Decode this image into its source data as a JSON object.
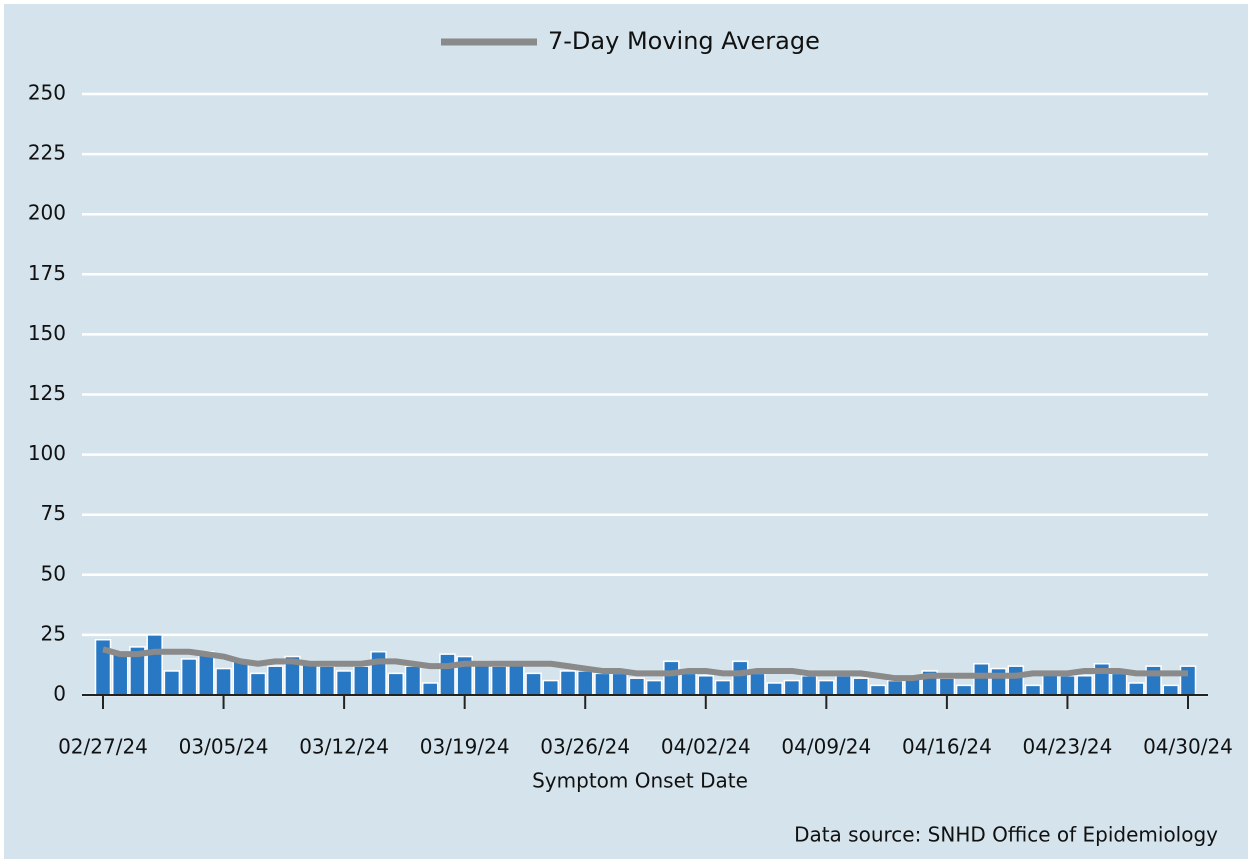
{
  "chart_data": {
    "type": "bar",
    "categories": [
      "02/27/24",
      null,
      null,
      null,
      null,
      null,
      null,
      "03/05/24",
      null,
      null,
      null,
      null,
      null,
      null,
      "03/12/24",
      null,
      null,
      null,
      null,
      null,
      null,
      "03/19/24",
      null,
      null,
      null,
      null,
      null,
      null,
      "03/26/24",
      null,
      null,
      null,
      null,
      null,
      null,
      "04/02/24",
      null,
      null,
      null,
      null,
      null,
      null,
      "04/09/24",
      null,
      null,
      null,
      null,
      null,
      null,
      "04/16/24",
      null,
      null,
      null,
      null,
      null,
      null,
      "04/23/24",
      null,
      null,
      null,
      null,
      null,
      null,
      "04/30/24"
    ],
    "values": [
      23,
      17,
      20,
      25,
      10,
      15,
      18,
      11,
      14,
      9,
      12,
      16,
      14,
      12,
      10,
      12,
      18,
      9,
      12,
      5,
      17,
      16,
      14,
      12,
      13,
      9,
      6,
      10,
      10,
      9,
      9,
      7,
      6,
      14,
      9,
      8,
      6,
      14,
      9,
      5,
      6,
      8,
      6,
      8,
      7,
      4,
      6,
      7,
      10,
      7,
      4,
      13,
      11,
      12,
      4,
      9,
      8,
      8,
      13,
      9,
      5,
      12,
      4,
      12
    ],
    "color": "#2878c4",
    "series": [
      {
        "name": "7-Day Moving Average",
        "color": "#8a8a8a",
        "values": [
          19,
          17,
          17,
          18,
          18,
          18,
          17,
          16,
          14,
          13,
          14,
          14,
          13,
          13,
          13,
          13,
          14,
          14,
          13,
          12,
          12,
          13,
          13,
          13,
          13,
          13,
          13,
          12,
          11,
          10,
          10,
          9,
          9,
          9,
          10,
          10,
          9,
          9,
          10,
          10,
          10,
          9,
          9,
          9,
          9,
          8,
          7,
          7,
          8,
          8,
          8,
          8,
          8,
          8,
          9,
          9,
          9,
          10,
          10,
          10,
          9,
          9,
          9,
          9
        ]
      }
    ],
    "x_label": "Symptom Onset Date",
    "source": "Data source: SNHD Office of Epidemiology",
    "ylim": [
      0,
      250
    ],
    "yticks": [
      0,
      25,
      50,
      75,
      100,
      125,
      150,
      175,
      200,
      225,
      250
    ],
    "grid": true,
    "legend": "top"
  }
}
